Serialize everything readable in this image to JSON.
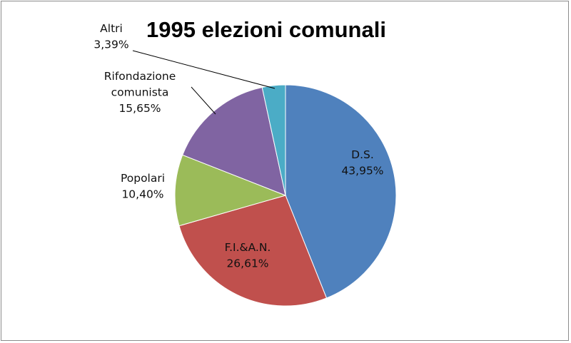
{
  "chart_data": {
    "type": "pie",
    "title": "1995 elezioni comunali",
    "slices": [
      {
        "label": "D.S.",
        "value": 43.95,
        "display": "43,95%",
        "color": "#4f81bd"
      },
      {
        "label": "F.I.&A.N.",
        "value": 26.61,
        "display": "26,61%",
        "color": "#c0504d"
      },
      {
        "label": "Popolari",
        "value": 10.4,
        "display": "10,40%",
        "color": "#9bbb59"
      },
      {
        "label": "Rifondazione comunista",
        "value": 15.65,
        "display": "15,65%",
        "color": "#8064a2"
      },
      {
        "label": "Altri",
        "value": 3.39,
        "display": "3,39%",
        "color": "#4bacc6"
      }
    ],
    "label_position": "mixed (inside for D.S. and F.I.&A.N., outside with leader lines for others)",
    "legend": "none",
    "start_angle": "12 o'clock, clockwise"
  }
}
